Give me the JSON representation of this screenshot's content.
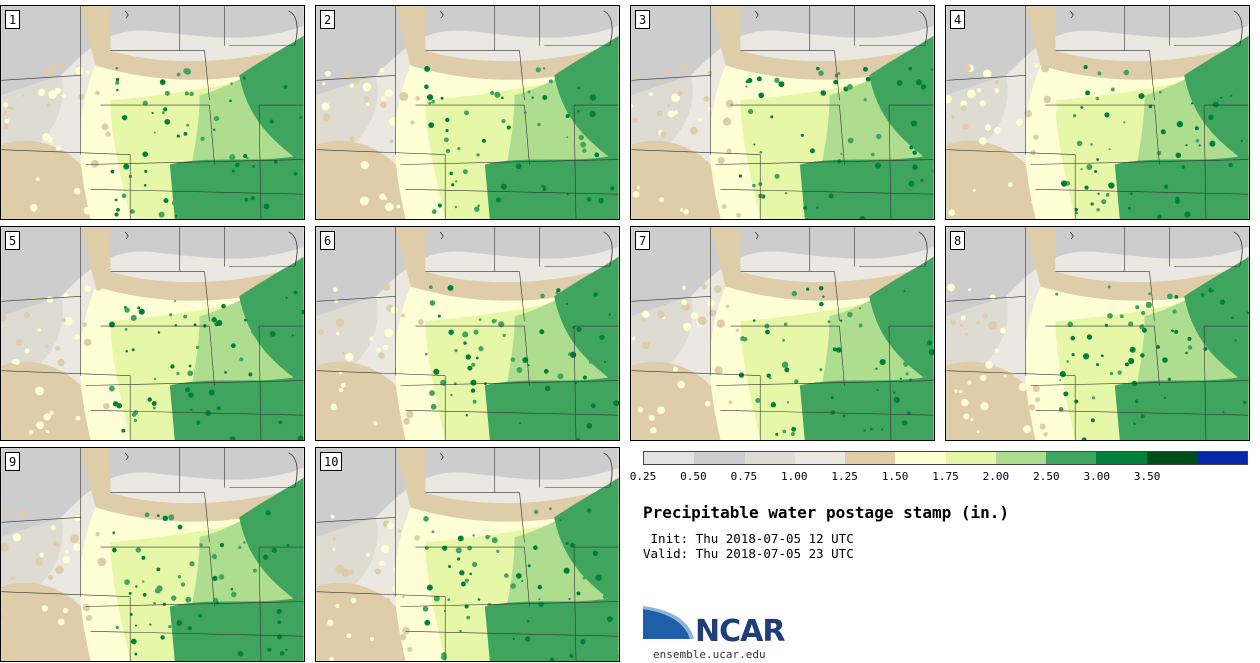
{
  "panels": [
    {
      "number": "1"
    },
    {
      "number": "2"
    },
    {
      "number": "3"
    },
    {
      "number": "4"
    },
    {
      "number": "5"
    },
    {
      "number": "6"
    },
    {
      "number": "7"
    },
    {
      "number": "8"
    },
    {
      "number": "9"
    },
    {
      "number": "10"
    }
  ],
  "legend": {
    "colors": [
      "#e3e3e3",
      "#cdcdcd",
      "#dedbd3",
      "#ebe8e1",
      "#dfcda9",
      "#fffed5",
      "#e6f7a7",
      "#aedd90",
      "#3ea45e",
      "#00803a",
      "#004d1b",
      "#0529a8"
    ],
    "ticks": [
      "0.25",
      "0.50",
      "0.75",
      "1.00",
      "1.25",
      "1.50",
      "1.75",
      "2.00",
      "2.50",
      "3.00",
      "3.50"
    ]
  },
  "title": "Precipitable water postage stamp (in.)",
  "init": " Init: Thu 2018-07-05 12 UTC",
  "valid": "Valid: Thu 2018-07-05 23 UTC",
  "logo": {
    "text": "NCAR",
    "url": "ensemble.ucar.edu"
  }
}
